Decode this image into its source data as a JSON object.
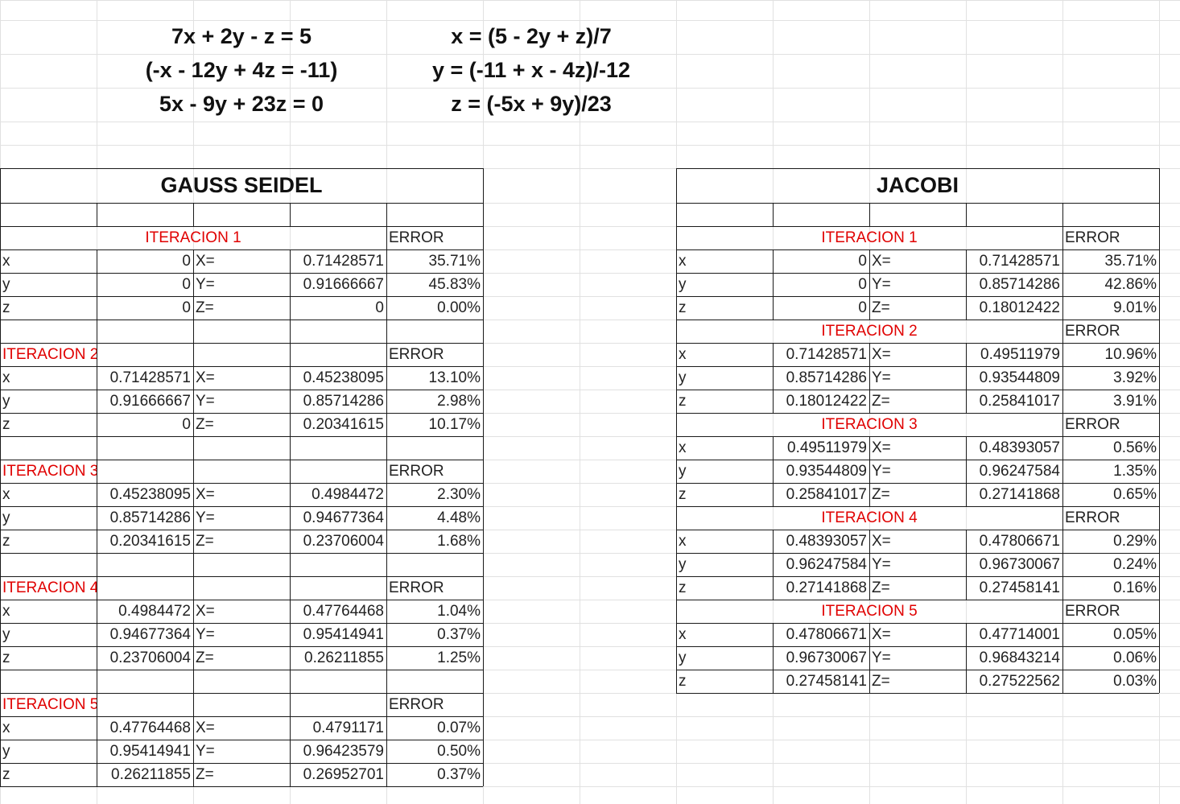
{
  "equations": {
    "system": [
      "7x + 2y - z = 5",
      "(-x - 12y + 4z = -11)",
      "5x - 9y + 23z = 0"
    ],
    "cleared": [
      "x = (5 - 2y + z)/7",
      "y = (-11 + x - 4z)/-12",
      "z = (-5x + 9y)/23"
    ]
  },
  "gauss": {
    "title": "GAUSS SEIDEL",
    "error_label": "ERROR",
    "iterations": [
      {
        "label": "ITERACION 1",
        "rows": [
          {
            "var": "x",
            "prev": "0",
            "eq": "X=",
            "new": "0.71428571",
            "err": "35.71%"
          },
          {
            "var": "y",
            "prev": "0",
            "eq": "Y=",
            "new": "0.91666667",
            "err": "45.83%"
          },
          {
            "var": "z",
            "prev": "0",
            "eq": "Z=",
            "new": "0",
            "err": "0.00%"
          }
        ]
      },
      {
        "label": "ITERACION 2",
        "rows": [
          {
            "var": "x",
            "prev": "0.71428571",
            "eq": "X=",
            "new": "0.45238095",
            "err": "13.10%"
          },
          {
            "var": "y",
            "prev": "0.91666667",
            "eq": "Y=",
            "new": "0.85714286",
            "err": "2.98%"
          },
          {
            "var": "z",
            "prev": "0",
            "eq": "Z=",
            "new": "0.20341615",
            "err": "10.17%"
          }
        ]
      },
      {
        "label": "ITERACION 3",
        "rows": [
          {
            "var": "x",
            "prev": "0.45238095",
            "eq": "X=",
            "new": "0.4984472",
            "err": "2.30%"
          },
          {
            "var": "y",
            "prev": "0.85714286",
            "eq": "Y=",
            "new": "0.94677364",
            "err": "4.48%"
          },
          {
            "var": "z",
            "prev": "0.20341615",
            "eq": "Z=",
            "new": "0.23706004",
            "err": "1.68%"
          }
        ]
      },
      {
        "label": "ITERACION 4",
        "rows": [
          {
            "var": "x",
            "prev": "0.4984472",
            "eq": "X=",
            "new": "0.47764468",
            "err": "1.04%"
          },
          {
            "var": "y",
            "prev": "0.94677364",
            "eq": "Y=",
            "new": "0.95414941",
            "err": "0.37%"
          },
          {
            "var": "z",
            "prev": "0.23706004",
            "eq": "Z=",
            "new": "0.26211855",
            "err": "1.25%"
          }
        ]
      },
      {
        "label": "ITERACION 5",
        "rows": [
          {
            "var": "x",
            "prev": "0.47764468",
            "eq": "X=",
            "new": "0.4791171",
            "err": "0.07%"
          },
          {
            "var": "y",
            "prev": "0.95414941",
            "eq": "Y=",
            "new": "0.96423579",
            "err": "0.50%"
          },
          {
            "var": "z",
            "prev": "0.26211855",
            "eq": "Z=",
            "new": "0.26952701",
            "err": "0.37%"
          }
        ]
      }
    ]
  },
  "jacobi": {
    "title": "JACOBI",
    "error_label": "ERROR",
    "iterations": [
      {
        "label": "ITERACION 1",
        "rows": [
          {
            "var": "x",
            "prev": "0",
            "eq": "X=",
            "new": "0.71428571",
            "err": "35.71%"
          },
          {
            "var": "y",
            "prev": "0",
            "eq": "Y=",
            "new": "0.85714286",
            "err": "42.86%"
          },
          {
            "var": "z",
            "prev": "0",
            "eq": "Z=",
            "new": "0.18012422",
            "err": "9.01%"
          }
        ]
      },
      {
        "label": "ITERACION 2",
        "rows": [
          {
            "var": "x",
            "prev": "0.71428571",
            "eq": "X=",
            "new": "0.49511979",
            "err": "10.96%"
          },
          {
            "var": "y",
            "prev": "0.85714286",
            "eq": "Y=",
            "new": "0.93544809",
            "err": "3.92%"
          },
          {
            "var": "z",
            "prev": "0.18012422",
            "eq": "Z=",
            "new": "0.25841017",
            "err": "3.91%"
          }
        ]
      },
      {
        "label": "ITERACION 3",
        "rows": [
          {
            "var": "x",
            "prev": "0.49511979",
            "eq": "X=",
            "new": "0.48393057",
            "err": "0.56%"
          },
          {
            "var": "y",
            "prev": "0.93544809",
            "eq": "Y=",
            "new": "0.96247584",
            "err": "1.35%"
          },
          {
            "var": "z",
            "prev": "0.25841017",
            "eq": "Z=",
            "new": "0.27141868",
            "err": "0.65%"
          }
        ]
      },
      {
        "label": "ITERACION 4",
        "rows": [
          {
            "var": "x",
            "prev": "0.48393057",
            "eq": "X=",
            "new": "0.47806671",
            "err": "0.29%"
          },
          {
            "var": "y",
            "prev": "0.96247584",
            "eq": "Y=",
            "new": "0.96730067",
            "err": "0.24%"
          },
          {
            "var": "z",
            "prev": "0.27141868",
            "eq": "Z=",
            "new": "0.27458141",
            "err": "0.16%"
          }
        ]
      },
      {
        "label": "ITERACION 5",
        "rows": [
          {
            "var": "x",
            "prev": "0.47806671",
            "eq": "X=",
            "new": "0.47714001",
            "err": "0.05%"
          },
          {
            "var": "y",
            "prev": "0.96730067",
            "eq": "Y=",
            "new": "0.96843214",
            "err": "0.06%"
          },
          {
            "var": "z",
            "prev": "0.27458141",
            "eq": "Z=",
            "new": "0.27522562",
            "err": "0.03%"
          }
        ]
      }
    ]
  }
}
